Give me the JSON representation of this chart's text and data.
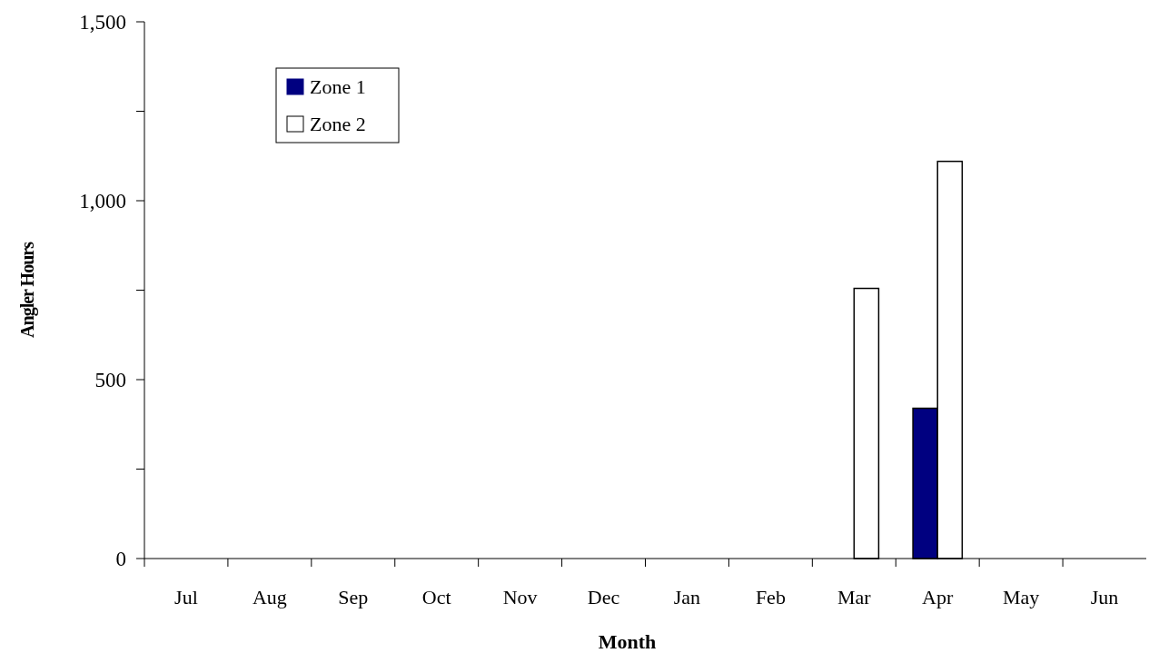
{
  "chart_data": {
    "type": "bar",
    "xlabel": "Month",
    "ylabel": "Angler Hours",
    "categories": [
      "Jul",
      "Aug",
      "Sep",
      "Oct",
      "Nov",
      "Dec",
      "Jan",
      "Feb",
      "Mar",
      "Apr",
      "May",
      "Jun"
    ],
    "series": [
      {
        "name": "Zone 1",
        "color": "#000080",
        "values": [
          null,
          null,
          null,
          null,
          null,
          null,
          null,
          null,
          null,
          420,
          null,
          null
        ]
      },
      {
        "name": "Zone 2",
        "color": "#ffffff",
        "values": [
          null,
          null,
          null,
          null,
          null,
          null,
          null,
          null,
          755,
          1110,
          null,
          null
        ]
      }
    ],
    "ylim": [
      0,
      1500
    ],
    "yticks": [
      0,
      {
        "value": 250,
        "label": null
      },
      500,
      {
        "value": 750,
        "label": null
      },
      {
        "value": 1000,
        "label": "1,000"
      },
      {
        "value": 1250,
        "label": null
      },
      {
        "value": 1500,
        "label": "1,500"
      }
    ],
    "legend": "top left"
  }
}
